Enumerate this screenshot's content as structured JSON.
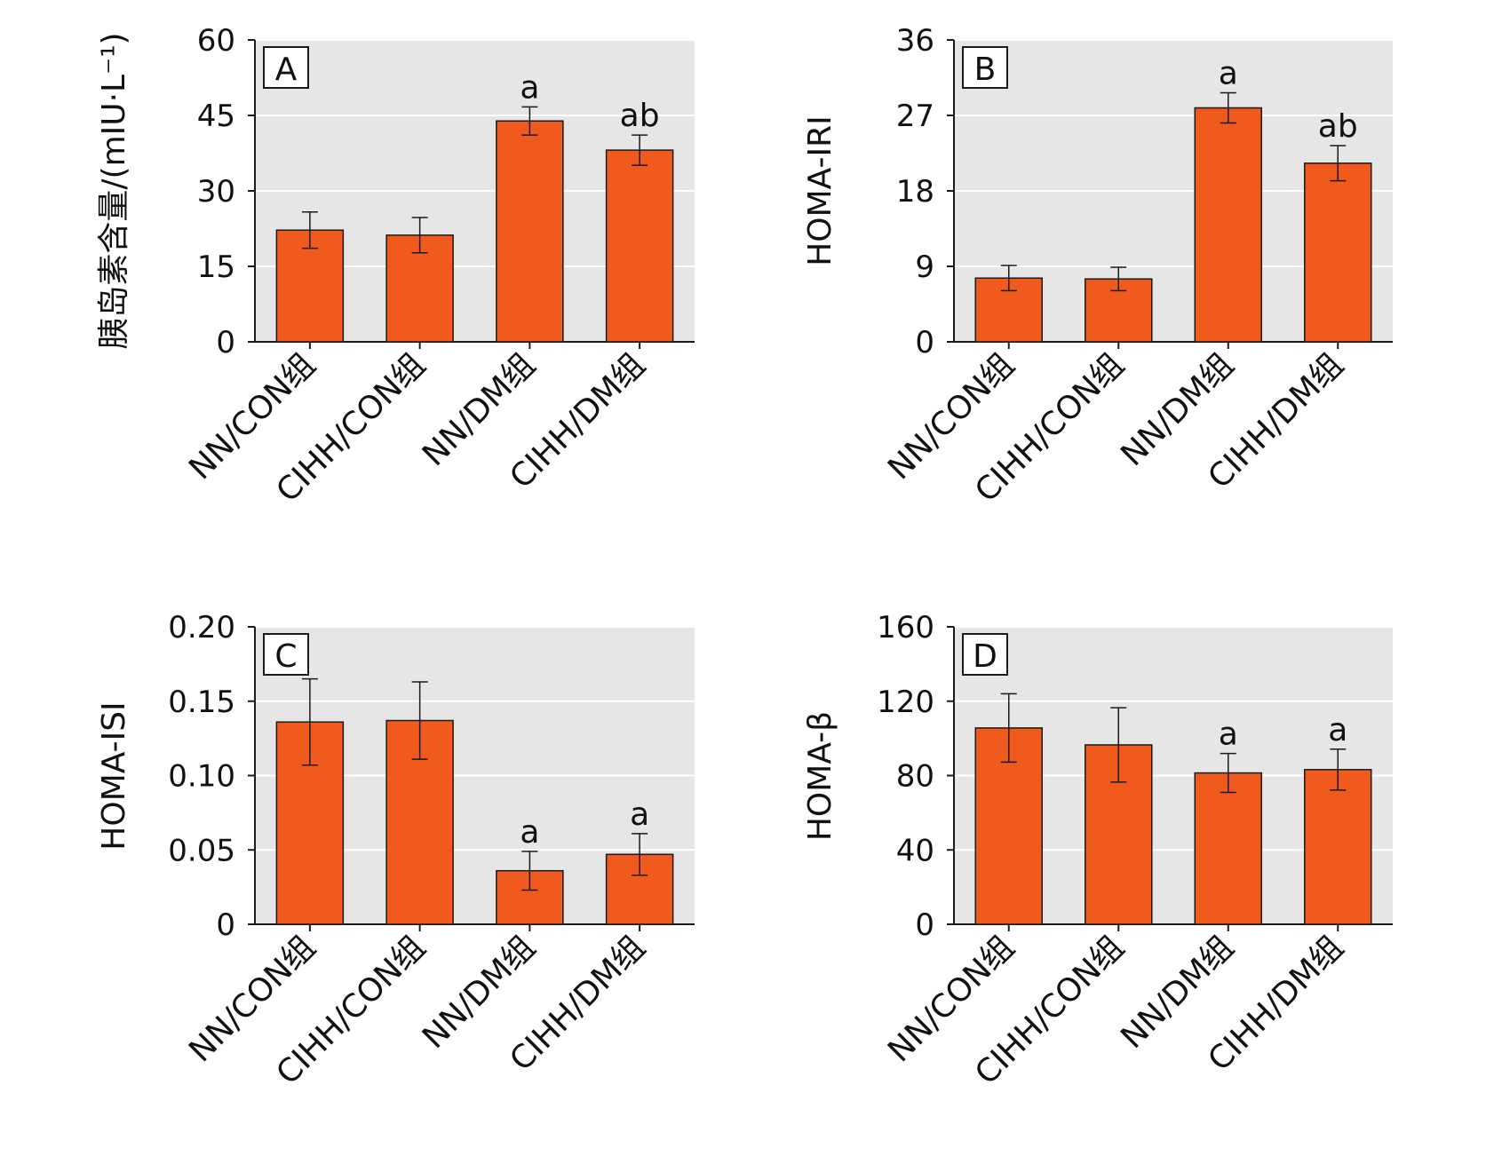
{
  "colors": {
    "bar": "#f05a1c",
    "bar_edge": "#1a1a1a",
    "plot_bg": "#e6e6e6",
    "grid": "#ffffff",
    "axis": "#1a1a1a"
  },
  "chart_data": [
    {
      "type": "bar",
      "panel_label": "A",
      "categories": [
        "NN/CON组",
        "CIHH/CON组",
        "NN/DM组",
        "CIHH/DM组"
      ],
      "values": [
        22.2,
        21.2,
        43.9,
        38.1
      ],
      "errors": [
        3.6,
        3.5,
        2.8,
        3.0
      ],
      "significance": [
        "",
        "",
        "a",
        "ab"
      ],
      "ylabel": "胰岛素含量/(mIU·L⁻¹)",
      "ylim": [
        0,
        60
      ],
      "yticks": [
        0,
        15,
        30,
        45,
        60
      ],
      "ytick_labels": [
        "0",
        "15",
        "30",
        "45",
        "60"
      ],
      "grid": true
    },
    {
      "type": "bar",
      "panel_label": "B",
      "categories": [
        "NN/CON组",
        "CIHH/CON组",
        "NN/DM组",
        "CIHH/DM组"
      ],
      "values": [
        7.6,
        7.5,
        27.9,
        21.3
      ],
      "errors": [
        1.5,
        1.4,
        1.8,
        2.1
      ],
      "significance": [
        "",
        "",
        "a",
        "ab"
      ],
      "ylabel": "HOMA-IRI",
      "ylim": [
        0,
        36
      ],
      "yticks": [
        0,
        9,
        18,
        27,
        36
      ],
      "ytick_labels": [
        "0",
        "9",
        "18",
        "27",
        "36"
      ],
      "grid": true
    },
    {
      "type": "bar",
      "panel_label": "C",
      "categories": [
        "NN/CON组",
        "CIHH/CON组",
        "NN/DM组",
        "CIHH/DM组"
      ],
      "values": [
        0.136,
        0.137,
        0.036,
        0.047
      ],
      "errors": [
        0.029,
        0.026,
        0.013,
        0.014
      ],
      "significance": [
        "",
        "",
        "a",
        "a"
      ],
      "ylabel": "HOMA-ISI",
      "ylim": [
        0,
        0.2
      ],
      "yticks": [
        0,
        0.05,
        0.1,
        0.15,
        0.2
      ],
      "ytick_labels": [
        "0",
        "0.05",
        "0.10",
        "0.15",
        "0.20"
      ],
      "grid": true
    },
    {
      "type": "bar",
      "panel_label": "D",
      "categories": [
        "NN/CON组",
        "CIHH/CON组",
        "NN/DM组",
        "CIHH/DM组"
      ],
      "values": [
        105.6,
        96.5,
        81.4,
        83.2
      ],
      "errors": [
        18.4,
        20.0,
        10.5,
        11.0
      ],
      "significance": [
        "",
        "",
        "a",
        "a"
      ],
      "ylabel": "HOMA-β",
      "ylim": [
        0,
        160
      ],
      "yticks": [
        0,
        40,
        80,
        120,
        160
      ],
      "ytick_labels": [
        "0",
        "40",
        "80",
        "120",
        "160"
      ],
      "grid": true
    }
  ]
}
